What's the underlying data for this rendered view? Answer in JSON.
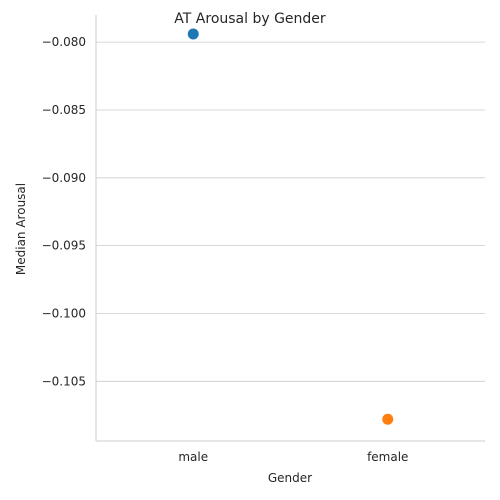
{
  "chart_data": {
    "type": "scatter",
    "title": "AT Arousal by Gender",
    "xlabel": "Gender",
    "ylabel": "Median Arousal",
    "categories": [
      "male",
      "female"
    ],
    "values": [
      -0.0794,
      -0.1078
    ],
    "colors": [
      "#1f77b4",
      "#ff7f0e"
    ],
    "ylim": [
      -0.1094,
      -0.078
    ],
    "yticks": [
      -0.08,
      -0.085,
      -0.09,
      -0.095,
      -0.1,
      -0.105
    ],
    "ytick_labels": [
      "−0.080",
      "−0.085",
      "−0.090",
      "−0.095",
      "−0.100",
      "−0.105"
    ],
    "grid": true,
    "grid_axis": "y",
    "legend": false
  }
}
